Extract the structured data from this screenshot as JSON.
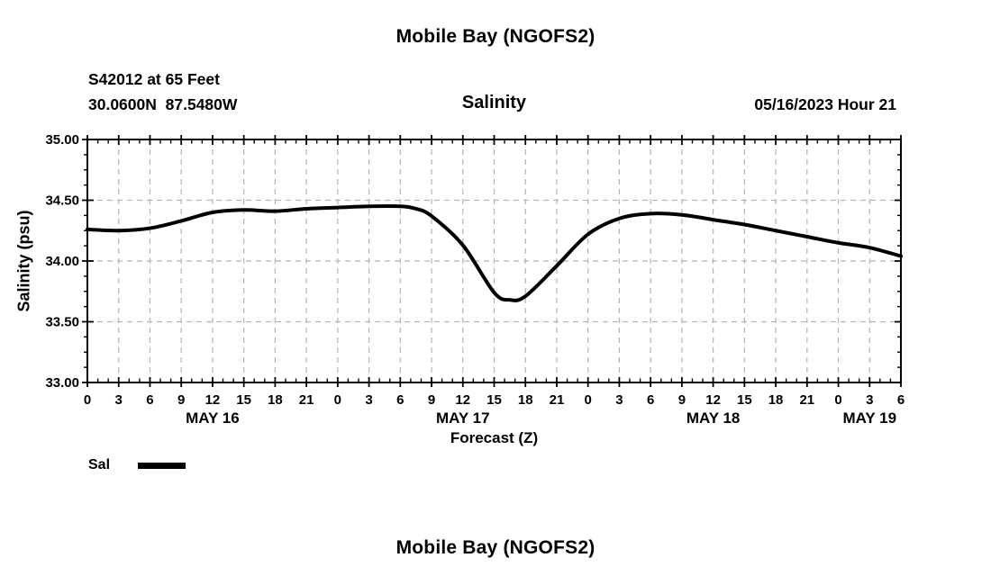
{
  "page": {
    "title_top": "Mobile Bay (NGOFS2)",
    "title_bottom": "Mobile Bay (NGOFS2)",
    "station_line1": "S42012 at 65 Feet",
    "station_line2": "30.0600N  87.5480W",
    "subtitle": "Salinity",
    "run_info": "05/16/2023 Hour 21",
    "ylabel": "Salinity (psu)",
    "xlabel": "Forecast (Z)",
    "legend": {
      "label": "Sal",
      "color": "#000000"
    }
  },
  "chart_data": {
    "type": "line",
    "title": "Salinity",
    "xlabel": "Forecast (Z)",
    "ylabel": "Salinity (psu)",
    "xlim_hours": [
      0,
      78
    ],
    "ylim": [
      33.0,
      35.0
    ],
    "y_major_ticks": [
      33.0,
      33.5,
      34.0,
      34.5,
      35.0
    ],
    "y_tick_labels": [
      "33.00",
      "33.50",
      "34.00",
      "34.50",
      "35.00"
    ],
    "y_minor_step": 0.125,
    "x_major_step_hours": 3,
    "x_minor_step_hours": 1,
    "x_tick_labels": [
      "0",
      "3",
      "6",
      "9",
      "12",
      "15",
      "18",
      "21",
      "0",
      "3",
      "6",
      "9",
      "12",
      "15",
      "18",
      "21",
      "0",
      "3",
      "6",
      "9",
      "12",
      "15",
      "18",
      "21",
      "0",
      "3",
      "6"
    ],
    "day_labels": [
      {
        "label": "MAY 16",
        "hour": 12
      },
      {
        "label": "MAY 17",
        "hour": 36
      },
      {
        "label": "MAY 18",
        "hour": 60
      },
      {
        "label": "MAY 19",
        "hour": 75
      }
    ],
    "grid": true,
    "grid_color": "#b4b4b4",
    "axis_color": "#000000",
    "legend_position": "bottom-left",
    "series": [
      {
        "name": "Sal",
        "color": "#000000",
        "points": [
          [
            0,
            34.26
          ],
          [
            3,
            34.25
          ],
          [
            6,
            34.27
          ],
          [
            9,
            34.33
          ],
          [
            12,
            34.4
          ],
          [
            15,
            34.42
          ],
          [
            18,
            34.41
          ],
          [
            21,
            34.43
          ],
          [
            24,
            34.44
          ],
          [
            27,
            34.45
          ],
          [
            30,
            34.45
          ],
          [
            31.5,
            34.43
          ],
          [
            33,
            34.37
          ],
          [
            36,
            34.13
          ],
          [
            39,
            33.74
          ],
          [
            40.5,
            33.68
          ],
          [
            42,
            33.71
          ],
          [
            45,
            33.96
          ],
          [
            48,
            34.22
          ],
          [
            51,
            34.35
          ],
          [
            54,
            34.39
          ],
          [
            57,
            34.38
          ],
          [
            60,
            34.34
          ],
          [
            63,
            34.3
          ],
          [
            66,
            34.25
          ],
          [
            69,
            34.2
          ],
          [
            72,
            34.15
          ],
          [
            75,
            34.11
          ],
          [
            78,
            34.04
          ]
        ]
      }
    ]
  }
}
